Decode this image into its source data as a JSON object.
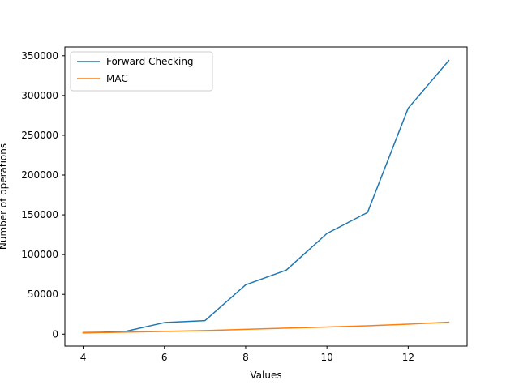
{
  "chart_data": {
    "type": "line",
    "title": "",
    "xlabel": "Values",
    "ylabel": "Number of operations",
    "x": [
      4,
      5,
      6,
      7,
      8,
      9,
      10,
      11,
      12,
      13
    ],
    "xlim": [
      3.55,
      13.45
    ],
    "ylim": [
      -15000,
      361000
    ],
    "xticks": [
      4,
      6,
      8,
      10,
      12
    ],
    "yticks": [
      0,
      50000,
      100000,
      150000,
      200000,
      250000,
      300000,
      350000
    ],
    "grid": false,
    "legend": "top-left",
    "series": [
      {
        "name": "Forward Checking",
        "color": "#1f77b4",
        "values": [
          2000,
          3000,
          14500,
          17000,
          62000,
          80500,
          126500,
          153000,
          284000,
          344000
        ]
      },
      {
        "name": "MAC",
        "color": "#ff7f0e",
        "values": [
          1500,
          2500,
          3500,
          4500,
          6000,
          7500,
          9000,
          10500,
          12500,
          15000
        ]
      }
    ]
  }
}
